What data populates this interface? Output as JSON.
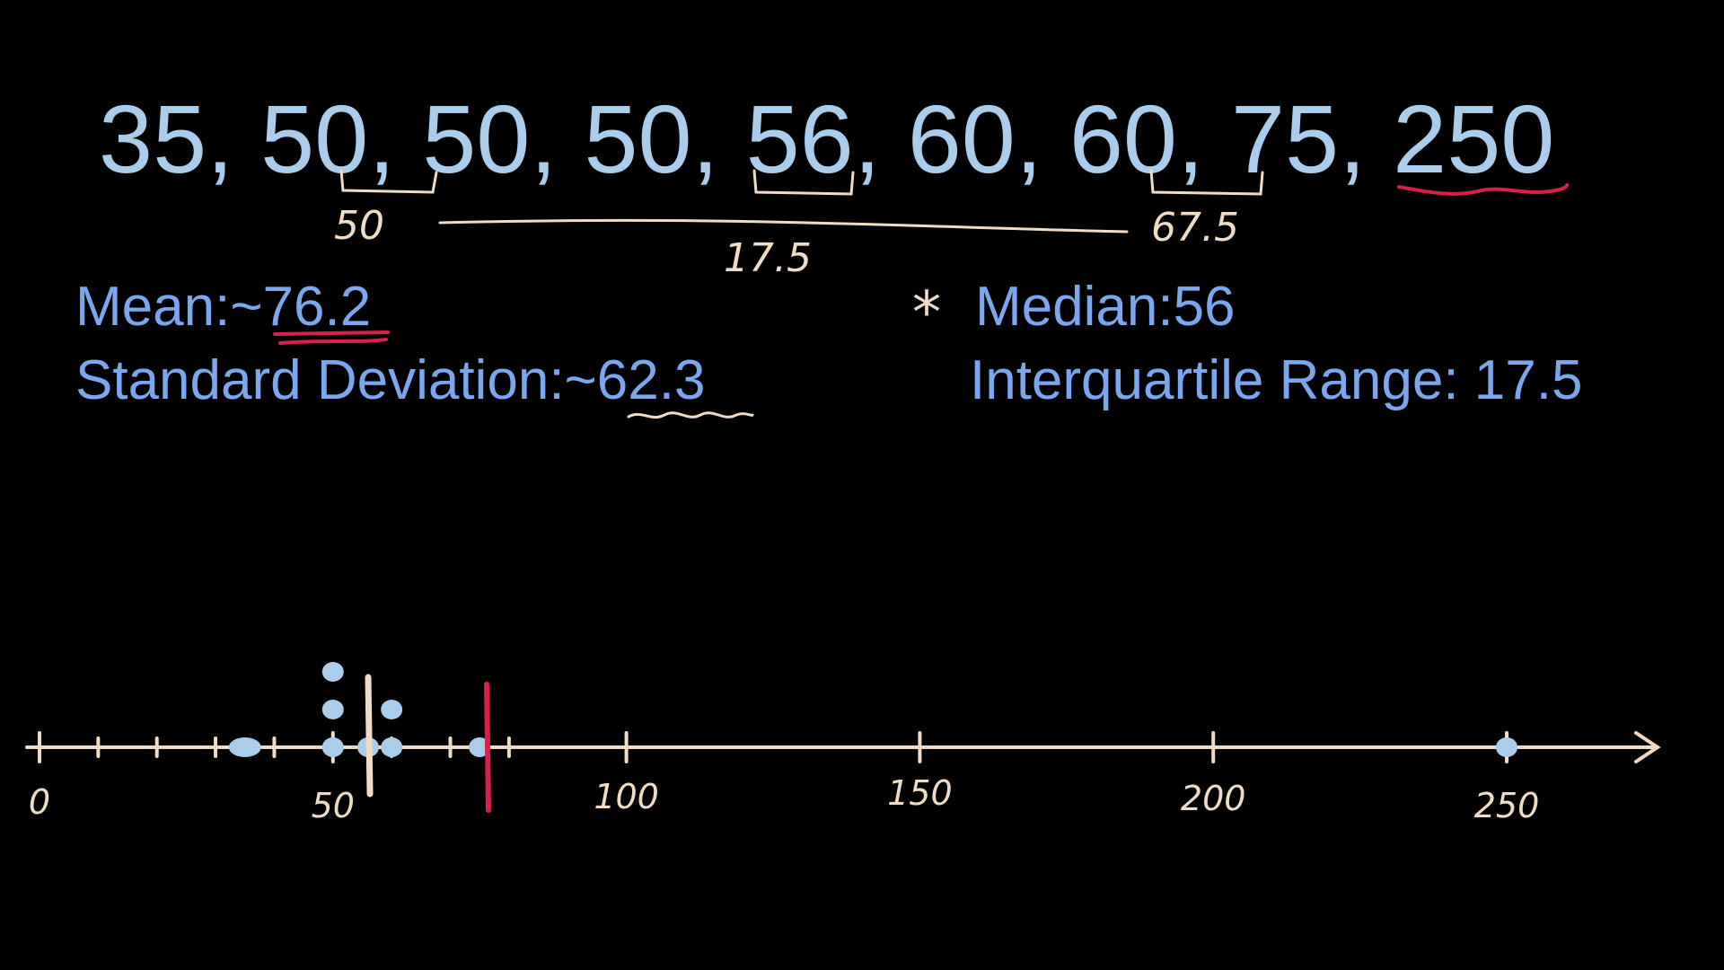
{
  "dataset": {
    "values": [
      "35",
      "50",
      "50",
      "50",
      "56",
      "60",
      "60",
      "75",
      "250"
    ],
    "text": "35, 50, 50, 50, 56, 60, 60, 75, 250"
  },
  "annotations": {
    "q1": "50",
    "q3": "67.5",
    "iqr": "17.5"
  },
  "stats": {
    "mean": "Mean:~76.2",
    "std_dev": "Standard Deviation:~62.3",
    "median": "Median:56",
    "iqr": "Interquartile Range: 17.5",
    "asterisk": "*"
  },
  "number_line": {
    "tick_labels": [
      "0",
      "50",
      "100",
      "150",
      "200",
      "250"
    ],
    "axis_min": 0,
    "axis_max": 250,
    "points": [
      35,
      50,
      50,
      50,
      56,
      60,
      60,
      75,
      250
    ],
    "median_value": 56,
    "mean_value": 76.2
  },
  "colors": {
    "background": "#000000",
    "dataset": "#a9cdea",
    "stats": "#7ba7ee",
    "chalk": "#f0dcc6",
    "highlight": "#d8204a"
  }
}
